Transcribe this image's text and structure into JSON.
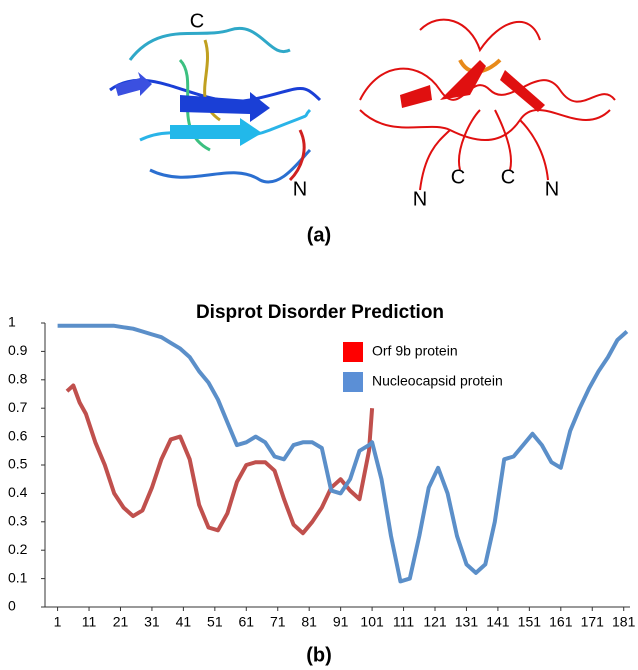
{
  "figure": {
    "panel_a": {
      "label": "(a)",
      "annotations": [
        "C",
        "N",
        "N",
        "C",
        "C",
        "N"
      ]
    },
    "panel_b_label": "(b)"
  },
  "chart_data": {
    "type": "line",
    "title": "Disprot Disorder Prediction",
    "x": [
      1,
      4,
      6,
      8,
      10,
      13,
      16,
      19,
      22,
      25,
      28,
      31,
      34,
      37,
      40,
      43,
      46,
      49,
      52,
      55,
      58,
      61,
      64,
      67,
      70,
      73,
      76,
      79,
      82,
      85,
      88,
      91,
      94,
      97,
      100,
      101,
      104,
      107,
      110,
      113,
      116,
      119,
      122,
      125,
      128,
      131,
      134,
      137,
      140,
      143,
      146,
      149,
      152,
      155,
      158,
      161,
      164,
      167,
      170,
      173,
      176,
      179,
      182
    ],
    "series": [
      {
        "name": "Orf 9b protein",
        "color": "#c0504d",
        "legend_color": "#ff0000",
        "values": [
          null,
          0.76,
          0.78,
          0.72,
          0.68,
          0.58,
          0.5,
          0.4,
          0.35,
          0.32,
          0.34,
          0.42,
          0.52,
          0.59,
          0.6,
          0.52,
          0.36,
          0.28,
          0.27,
          0.33,
          0.44,
          0.5,
          0.51,
          0.51,
          0.48,
          0.38,
          0.29,
          0.26,
          0.3,
          0.35,
          0.42,
          0.45,
          0.41,
          0.38,
          0.55,
          0.7,
          null,
          null,
          null,
          null,
          null,
          null,
          null,
          null,
          null,
          null,
          null,
          null,
          null,
          null,
          null,
          null,
          null,
          null,
          null,
          null,
          null,
          null,
          null,
          null,
          null,
          null,
          null
        ]
      },
      {
        "name": "Nucleocapsid protein",
        "color": "#5b8fc9",
        "legend_color": "#5b8fd6",
        "values": [
          0.99,
          0.99,
          0.99,
          0.99,
          0.99,
          0.99,
          0.99,
          0.99,
          0.985,
          0.98,
          0.97,
          0.96,
          0.95,
          0.93,
          0.91,
          0.88,
          0.83,
          0.79,
          0.73,
          0.65,
          0.57,
          0.58,
          0.6,
          0.58,
          0.53,
          0.52,
          0.57,
          0.58,
          0.58,
          0.56,
          0.41,
          0.4,
          0.45,
          0.55,
          0.57,
          0.58,
          0.45,
          0.25,
          0.09,
          0.1,
          0.25,
          0.42,
          0.49,
          0.4,
          0.25,
          0.15,
          0.12,
          0.15,
          0.3,
          0.52,
          0.53,
          0.57,
          0.61,
          0.57,
          0.51,
          0.49,
          0.62,
          0.7,
          0.77,
          0.83,
          0.88,
          0.94,
          0.97
        ]
      }
    ],
    "xlim": [
      -3,
      183
    ],
    "xticks": [
      1,
      11,
      21,
      31,
      41,
      51,
      61,
      71,
      81,
      91,
      101,
      111,
      121,
      131,
      141,
      151,
      161,
      171,
      181
    ],
    "ylim": [
      0,
      1
    ],
    "yticks": [
      0,
      0.1,
      0.2,
      0.3,
      0.4,
      0.5,
      0.6,
      0.7,
      0.8,
      0.9,
      1
    ],
    "grid": false,
    "legend": "upper right"
  }
}
